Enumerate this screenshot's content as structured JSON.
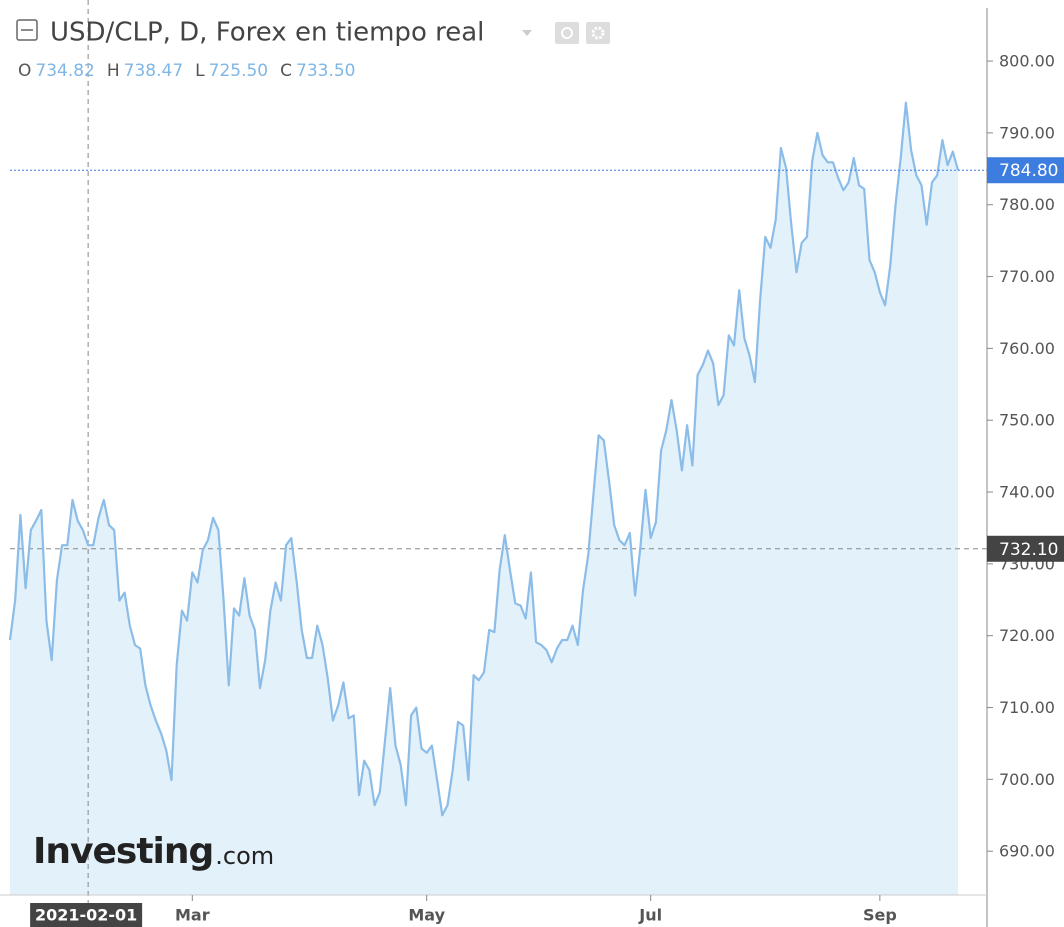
{
  "chart_data": {
    "type": "area",
    "title": "USD/CLP, D, Forex en tiempo real",
    "ohlc": [
      {
        "label": "O",
        "value": "734.82"
      },
      {
        "label": "H",
        "value": "738.47"
      },
      {
        "label": "L",
        "value": "725.50"
      },
      {
        "label": "C",
        "value": "733.50"
      }
    ],
    "watermark": {
      "brand": "Investing",
      "suffix": ".com"
    },
    "color": "#8bbde8",
    "fill": "#e3f1fb",
    "x": [
      0,
      1,
      2,
      3,
      4,
      5,
      6,
      7,
      8,
      9,
      10,
      11,
      12,
      13,
      14,
      15,
      16,
      17,
      18,
      19,
      20,
      21,
      22,
      23,
      24,
      25,
      26,
      27,
      28,
      29,
      30,
      31,
      32,
      33,
      34,
      35,
      36,
      37,
      38,
      39,
      40,
      41,
      42,
      43,
      44,
      45,
      46,
      47,
      48,
      49,
      50,
      51,
      52,
      53,
      54,
      55,
      56,
      57,
      58,
      59,
      60,
      61,
      62,
      63,
      64,
      65,
      66,
      67,
      68,
      69,
      70,
      71,
      72,
      73,
      74,
      75,
      76,
      77,
      78,
      79,
      80,
      81,
      82,
      83,
      84,
      85,
      86,
      87,
      88,
      89,
      90,
      91,
      92,
      93,
      94,
      95,
      96,
      97,
      98,
      99,
      100,
      101,
      102,
      103,
      104,
      105,
      106,
      107,
      108,
      109,
      110,
      111,
      112,
      113,
      114,
      115,
      116,
      117,
      118,
      119,
      120,
      121,
      122,
      123,
      124,
      125,
      126,
      127,
      128,
      129,
      130,
      131,
      132,
      133,
      134,
      135,
      136,
      137,
      138,
      139,
      140,
      141,
      142,
      143,
      144,
      145,
      146,
      147,
      148,
      149,
      150,
      151,
      152,
      153,
      154,
      155,
      156,
      157,
      158,
      159,
      160,
      161,
      162,
      163,
      164,
      165,
      166,
      167,
      168,
      169,
      170,
      171,
      172,
      173,
      174,
      175,
      176,
      177,
      178,
      179,
      180,
      181,
      182
    ],
    "values": [
      719.4,
      725,
      736.8,
      726.6,
      734.7,
      736,
      737.5,
      722,
      716.6,
      727.7,
      732.6,
      732.6,
      738.9,
      736,
      734.7,
      732.6,
      732.6,
      736.4,
      738.9,
      735.4,
      734.7,
      724.9,
      726,
      721.4,
      718.7,
      718.2,
      713.1,
      710.3,
      708.2,
      706.4,
      704,
      699.9,
      715.9,
      723.5,
      722.1,
      728.8,
      727.4,
      731.9,
      733.3,
      736.4,
      734.7,
      724.9,
      713.1,
      723.8,
      722.8,
      728,
      722.8,
      720.8,
      712.7,
      716.6,
      723.5,
      727.4,
      724.9,
      732.6,
      733.6,
      727.7,
      720.8,
      716.9,
      716.9,
      721.4,
      718.7,
      714.1,
      708.2,
      710.3,
      713.5,
      708.5,
      708.9,
      697.8,
      702.6,
      701.3,
      696.4,
      698.2,
      705.4,
      712.7,
      704.7,
      702,
      696.4,
      708.9,
      710,
      704.3,
      703.7,
      704.7,
      699.9,
      695,
      696.4,
      701.3,
      708,
      707.5,
      699.9,
      714.5,
      713.8,
      714.9,
      720.8,
      720.5,
      729.1,
      734,
      729.1,
      724.5,
      724.2,
      722.4,
      728.8,
      719.1,
      718.7,
      718,
      716.3,
      718.2,
      719.4,
      719.4,
      721.4,
      718.7,
      726.3,
      731.2,
      739.6,
      747.9,
      747.2,
      741.6,
      735.4,
      733.3,
      732.6,
      734.3,
      725.6,
      732.2,
      740.3,
      733.6,
      735.8,
      745.8,
      748.6,
      752.8,
      748.6,
      743,
      749.3,
      743.7,
      756.3,
      757.7,
      759.7,
      757.9,
      752.1,
      753.5,
      761.8,
      760.4,
      768.1,
      761.4,
      759,
      755.3,
      766.7,
      775.5,
      774,
      777.9,
      787.9,
      785.1,
      777.2,
      770.6,
      774.7,
      775.5,
      786.1,
      790,
      786.9,
      785.9,
      785.9,
      783.7,
      782,
      783.1,
      786.5,
      782.7,
      782.2,
      772.3,
      770.6,
      767.8,
      766,
      771.6,
      779.9,
      786.5,
      794.2,
      787.6,
      784.1,
      782.7,
      777.2,
      783.1,
      784.1,
      789,
      785.5,
      787.4,
      784.8
    ],
    "xlim": [
      0,
      182
    ],
    "xticks": [
      {
        "value": 35,
        "label": "Mar"
      },
      {
        "value": 80,
        "label": "May"
      },
      {
        "value": 123,
        "label": "Jul"
      },
      {
        "value": 167,
        "label": "Sep"
      }
    ],
    "ylim": [
      683.9,
      808.5
    ],
    "yticks": [
      {
        "value": 690,
        "label": "690.00"
      },
      {
        "value": 700,
        "label": "700.00"
      },
      {
        "value": 710,
        "label": "710.00"
      },
      {
        "value": 720,
        "label": "720.00"
      },
      {
        "value": 730,
        "label": "730.00"
      },
      {
        "value": 740,
        "label": "740.00"
      },
      {
        "value": 750,
        "label": "750.00"
      },
      {
        "value": 760,
        "label": "760.00"
      },
      {
        "value": 770,
        "label": "770.00"
      },
      {
        "value": 780,
        "label": "780.00"
      },
      {
        "value": 790,
        "label": "790.00"
      },
      {
        "value": 800,
        "label": "800.00"
      }
    ],
    "last_price": {
      "value": 784.8,
      "label": "784.80"
    },
    "crosshair": {
      "x": {
        "value": 15,
        "label": "2021-02-01"
      },
      "y": {
        "value": 732.1,
        "label": "732.10"
      }
    }
  }
}
